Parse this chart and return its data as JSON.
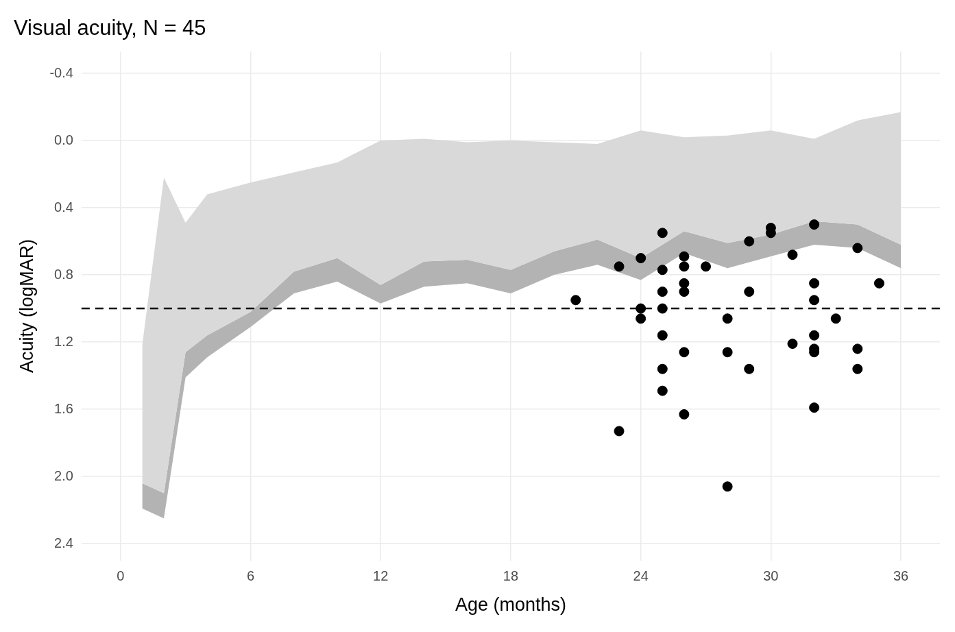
{
  "chart_data": {
    "type": "scatter",
    "title": "Visual acuity, N = 45",
    "xlabel": "Age (months)",
    "ylabel": "Acuity (logMAR)",
    "xlim": [
      -1.8,
      37.8
    ],
    "xticks": [
      0,
      6,
      12,
      18,
      24,
      30,
      36
    ],
    "ylim": [
      2.5,
      -0.53
    ],
    "yticks": [
      -0.4,
      {
        "value": 0,
        "label": "0.0"
      },
      0.4,
      0.8,
      1.2,
      1.6,
      {
        "value": 2,
        "label": "2.0"
      },
      2.4
    ],
    "grid": true,
    "legend": false,
    "marker": "circle",
    "ref_lines": [
      {
        "axis": "y",
        "value": 1.0,
        "color": "#000000",
        "line_style": "dashed"
      }
    ],
    "series": [
      {
        "type": "line",
        "color": "#d9d9d9",
        "x": [
          1,
          2,
          3,
          4,
          6,
          8,
          10,
          12,
          14,
          16,
          18,
          20,
          22,
          24,
          26,
          28,
          30,
          32,
          34,
          36
        ],
        "values": [
          null,
          null,
          null,
          null,
          null,
          null,
          null,
          null,
          null,
          null,
          null,
          null,
          null,
          null,
          null,
          null,
          null,
          null,
          null,
          null
        ],
        "lower": [
          1.22,
          0.22,
          0.49,
          0.32,
          0.25,
          0.19,
          0.13,
          0.0,
          -0.01,
          0.01,
          0.0,
          0.01,
          0.02,
          -0.06,
          -0.02,
          -0.03,
          -0.06,
          -0.01,
          -0.12,
          -0.17
        ],
        "upper": [
          2.04,
          2.1,
          1.26,
          1.16,
          1.02,
          0.78,
          0.7,
          0.86,
          0.72,
          0.71,
          0.77,
          0.66,
          0.59,
          0.7,
          0.54,
          0.61,
          0.56,
          0.48,
          0.5,
          0.62
        ]
      },
      {
        "type": "line",
        "color": "#b3b3b3",
        "x": [
          1,
          2,
          3,
          4,
          6,
          8,
          10,
          12,
          14,
          16,
          18,
          20,
          22,
          24,
          26,
          28,
          30,
          32,
          34,
          36
        ],
        "values": [
          null,
          null,
          null,
          null,
          null,
          null,
          null,
          null,
          null,
          null,
          null,
          null,
          null,
          null,
          null,
          null,
          null,
          null,
          null,
          null
        ],
        "lower": [
          2.04,
          2.1,
          1.26,
          1.16,
          1.02,
          0.78,
          0.7,
          0.86,
          0.72,
          0.71,
          0.77,
          0.66,
          0.59,
          0.7,
          0.54,
          0.61,
          0.56,
          0.48,
          0.5,
          0.62
        ],
        "upper": [
          2.19,
          2.25,
          1.41,
          1.29,
          1.11,
          0.91,
          0.84,
          0.97,
          0.87,
          0.85,
          0.91,
          0.8,
          0.74,
          0.83,
          0.67,
          0.76,
          0.69,
          0.62,
          0.64,
          0.76
        ]
      },
      {
        "type": "scatter",
        "color": "#000000",
        "x": [
          21,
          23,
          23,
          24,
          24,
          24,
          25,
          25,
          25,
          25,
          25,
          25,
          25,
          26,
          26,
          26,
          26,
          26,
          26,
          27,
          28,
          28,
          28,
          29,
          29,
          29,
          30,
          30,
          31,
          31,
          32,
          32,
          32,
          32,
          32,
          32,
          32,
          33,
          34,
          34,
          34,
          35
        ],
        "values": [
          0.95,
          0.75,
          1.73,
          0.7,
          1.0,
          1.06,
          0.55,
          0.77,
          0.9,
          1.0,
          1.16,
          1.36,
          1.49,
          0.69,
          0.75,
          0.85,
          0.9,
          1.26,
          1.63,
          0.75,
          1.06,
          1.26,
          2.06,
          0.6,
          0.9,
          1.36,
          0.52,
          0.55,
          0.68,
          1.21,
          0.5,
          0.85,
          0.95,
          1.16,
          1.24,
          1.26,
          1.59,
          1.06,
          0.64,
          1.24,
          1.36,
          0.85
        ]
      }
    ]
  }
}
